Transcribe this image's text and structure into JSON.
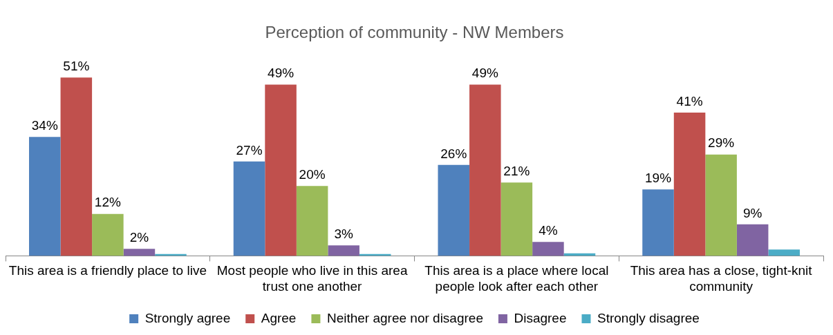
{
  "chart_data": {
    "type": "bar",
    "title": "Perception of community - NW Members",
    "categories": [
      "This area is a friendly place to live",
      "Most people who live in this area trust one another",
      "This area is a place where local people look after each other",
      "This area has a close, tight-knit community"
    ],
    "series": [
      {
        "name": "Strongly agree",
        "color": "#4f81bd",
        "values": [
          34,
          27,
          26,
          19
        ],
        "value_labels": [
          "34%",
          "27%",
          "26%",
          "19%"
        ]
      },
      {
        "name": "Agree",
        "color": "#c0504d",
        "values": [
          51,
          49,
          49,
          41
        ],
        "value_labels": [
          "51%",
          "49%",
          "49%",
          "41%"
        ]
      },
      {
        "name": "Neither agree nor disagree",
        "color": "#9bbb59",
        "values": [
          12,
          20,
          21,
          29
        ],
        "value_labels": [
          "12%",
          "20%",
          "21%",
          "29%"
        ]
      },
      {
        "name": "Disagree",
        "color": "#8064a2",
        "values": [
          2,
          3,
          4,
          9
        ],
        "value_labels": [
          "2%",
          "3%",
          "4%",
          "9%"
        ]
      },
      {
        "name": "Strongly disagree",
        "color": "#4bacc6",
        "values": [
          0.5,
          0.5,
          0.7,
          1.8
        ],
        "value_labels": [
          null,
          null,
          null,
          null
        ]
      }
    ],
    "grid": false,
    "legend": "bottom"
  }
}
